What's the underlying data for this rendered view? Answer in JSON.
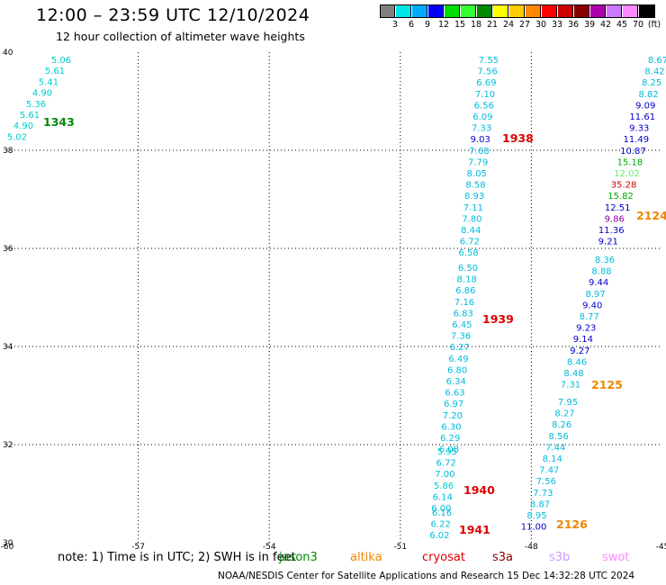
{
  "title": "12:00 – 23:59 UTC 12/10/2024",
  "subtitle": "12 hour collection of altimeter wave heights",
  "legend": {
    "unit": "(ft)",
    "bins": [
      {
        "label": "3",
        "color": "#808080"
      },
      {
        "label": "6",
        "color": "#00e5e5"
      },
      {
        "label": "9",
        "color": "#00aaff"
      },
      {
        "label": "12",
        "color": "#0000ff"
      },
      {
        "label": "15",
        "color": "#00dd00"
      },
      {
        "label": "18",
        "color": "#33ff33"
      },
      {
        "label": "21",
        "color": "#008800"
      },
      {
        "label": "24",
        "color": "#ffff00"
      },
      {
        "label": "27",
        "color": "#ffcc00"
      },
      {
        "label": "30",
        "color": "#ff8800"
      },
      {
        "label": "33",
        "color": "#ff0000"
      },
      {
        "label": "36",
        "color": "#cc0000"
      },
      {
        "label": "39",
        "color": "#880000"
      },
      {
        "label": "42",
        "color": "#aa00aa"
      },
      {
        "label": "45",
        "color": "#cc77ff"
      },
      {
        "label": "70",
        "color": "#ff88ff"
      },
      {
        "label": "",
        "color": "#000000"
      }
    ]
  },
  "axes": {
    "x_ticks": [
      "-60",
      "-57",
      "-54",
      "-51",
      "-48",
      "-45"
    ],
    "y_ticks": [
      "30",
      "32",
      "34",
      "36",
      "38",
      "40"
    ],
    "lon_range": [
      -60,
      -45
    ],
    "lat_range": [
      30,
      40
    ]
  },
  "tracks": [
    {
      "pass": "1343",
      "pass_color": "#008800",
      "points": [
        {
          "v": "5.06",
          "c": "#00cccc"
        },
        {
          "v": "5.61",
          "c": "#00cccc"
        },
        {
          "v": "5.41",
          "c": "#00cccc"
        },
        {
          "v": "4.90",
          "c": "#00cccc"
        },
        {
          "v": "5.36",
          "c": "#00cccc"
        },
        {
          "v": "5.61",
          "c": "#00cccc"
        },
        {
          "v": "4.90",
          "c": "#00cccc"
        },
        {
          "v": "5.02",
          "c": "#00cccc"
        }
      ]
    },
    {
      "pass": "1938",
      "pass_color": "#dd0000",
      "points": [
        {
          "v": "7.55",
          "c": "#00bbdd"
        },
        {
          "v": "7.56",
          "c": "#00bbdd"
        },
        {
          "v": "6.69",
          "c": "#00bbdd"
        },
        {
          "v": "7.10",
          "c": "#00bbdd"
        },
        {
          "v": "6.56",
          "c": "#00bbdd"
        },
        {
          "v": "6.09",
          "c": "#00bbdd"
        },
        {
          "v": "7.33",
          "c": "#00bbdd"
        },
        {
          "v": "9.03",
          "c": "#0000cc"
        },
        {
          "v": "7.68",
          "c": "#00bbdd"
        },
        {
          "v": "7.79",
          "c": "#00bbdd"
        },
        {
          "v": "8.05",
          "c": "#00bbdd"
        },
        {
          "v": "8.58",
          "c": "#00bbdd"
        },
        {
          "v": "8.93",
          "c": "#00bbdd"
        },
        {
          "v": "7.11",
          "c": "#00bbdd"
        },
        {
          "v": "7.80",
          "c": "#00bbdd"
        },
        {
          "v": "8.44",
          "c": "#00bbdd"
        },
        {
          "v": "6.72",
          "c": "#00bbdd"
        },
        {
          "v": "6.58",
          "c": "#00bbdd"
        }
      ]
    },
    {
      "pass": "1939",
      "pass_color": "#dd0000",
      "points": [
        {
          "v": "6.50",
          "c": "#00bbdd"
        },
        {
          "v": "8.18",
          "c": "#00bbdd"
        },
        {
          "v": "6.86",
          "c": "#00bbdd"
        },
        {
          "v": "7.16",
          "c": "#00bbdd"
        },
        {
          "v": "6.83",
          "c": "#00bbdd"
        },
        {
          "v": "6.45",
          "c": "#00bbdd"
        },
        {
          "v": "7.36",
          "c": "#00bbdd"
        },
        {
          "v": "6.27",
          "c": "#00bbdd"
        },
        {
          "v": "6.49",
          "c": "#00bbdd"
        },
        {
          "v": "6.80",
          "c": "#00bbdd"
        },
        {
          "v": "6.34",
          "c": "#00bbdd"
        },
        {
          "v": "6.63",
          "c": "#00bbdd"
        },
        {
          "v": "6.97",
          "c": "#00bbdd"
        },
        {
          "v": "7.20",
          "c": "#00bbdd"
        },
        {
          "v": "6.30",
          "c": "#00bbdd"
        },
        {
          "v": "6.29",
          "c": "#00bbdd"
        },
        {
          "v": "6.08",
          "c": "#00bbdd"
        }
      ]
    },
    {
      "pass": "1940",
      "pass_color": "#dd0000",
      "points": [
        {
          "v": "5.95",
          "c": "#00cccc"
        },
        {
          "v": "6.72",
          "c": "#00bbdd"
        },
        {
          "v": "7.00",
          "c": "#00bbdd"
        },
        {
          "v": "5.86",
          "c": "#00cccc"
        },
        {
          "v": "6.14",
          "c": "#00bbdd"
        },
        {
          "v": "6.00",
          "c": "#00bbdd"
        }
      ]
    },
    {
      "pass": "1941",
      "pass_color": "#dd0000",
      "points": [
        {
          "v": "6.16",
          "c": "#00bbdd"
        },
        {
          "v": "6.22",
          "c": "#00bbdd"
        },
        {
          "v": "6.02",
          "c": "#00bbdd"
        }
      ]
    },
    {
      "pass": "2124",
      "pass_color": "#ee8800",
      "points": [
        {
          "v": "8.67",
          "c": "#00bbdd"
        },
        {
          "v": "8.42",
          "c": "#00bbdd"
        },
        {
          "v": "8.25",
          "c": "#00bbdd"
        },
        {
          "v": "8.82",
          "c": "#00bbdd"
        },
        {
          "v": "9.09",
          "c": "#0000cc"
        },
        {
          "v": "11.61",
          "c": "#0000cc"
        },
        {
          "v": "9.33",
          "c": "#0000cc"
        },
        {
          "v": "11.49",
          "c": "#0000cc"
        },
        {
          "v": "10.87",
          "c": "#0000cc"
        },
        {
          "v": "15.18",
          "c": "#00aa00"
        },
        {
          "v": "12.02",
          "c": "#66ee66"
        },
        {
          "v": "35.28",
          "c": "#cc0000"
        },
        {
          "v": "15.82",
          "c": "#00aa00"
        },
        {
          "v": "12.51",
          "c": "#0000cc"
        },
        {
          "v": "9.86",
          "c": "#8800aa"
        },
        {
          "v": "11.36",
          "c": "#0000cc"
        },
        {
          "v": "9.21",
          "c": "#0000cc"
        }
      ]
    },
    {
      "pass": "2125",
      "pass_color": "#ee8800",
      "points": [
        {
          "v": "8.36",
          "c": "#00bbdd"
        },
        {
          "v": "8.88",
          "c": "#00bbdd"
        },
        {
          "v": "9.44",
          "c": "#0000cc"
        },
        {
          "v": "8.97",
          "c": "#00bbdd"
        },
        {
          "v": "9.40",
          "c": "#0000cc"
        },
        {
          "v": "8.77",
          "c": "#00bbdd"
        },
        {
          "v": "9.23",
          "c": "#0000cc"
        },
        {
          "v": "9.14",
          "c": "#0000cc"
        },
        {
          "v": "9.27",
          "c": "#0000cc"
        },
        {
          "v": "8.46",
          "c": "#00bbdd"
        },
        {
          "v": "8.48",
          "c": "#00bbdd"
        },
        {
          "v": "7.31",
          "c": "#00bbdd"
        }
      ]
    },
    {
      "pass": "2126",
      "pass_color": "#ee8800",
      "points": [
        {
          "v": "7.95",
          "c": "#00bbdd"
        },
        {
          "v": "8.27",
          "c": "#00bbdd"
        },
        {
          "v": "8.26",
          "c": "#00bbdd"
        },
        {
          "v": "8.56",
          "c": "#00bbdd"
        },
        {
          "v": "7.44",
          "c": "#00bbdd"
        },
        {
          "v": "8.14",
          "c": "#00bbdd"
        },
        {
          "v": "7.47",
          "c": "#00bbdd"
        },
        {
          "v": "7.56",
          "c": "#00bbdd"
        },
        {
          "v": "7.73",
          "c": "#00bbdd"
        },
        {
          "v": "8.87",
          "c": "#00bbdd"
        },
        {
          "v": "8.95",
          "c": "#00bbdd"
        },
        {
          "v": "11.00",
          "c": "#0000cc"
        }
      ]
    }
  ],
  "note": "note:  1) Time is in UTC; 2) SWH is in feet",
  "satellites": [
    {
      "name": "jason3",
      "color": "#008800"
    },
    {
      "name": "altika",
      "color": "#ee8800"
    },
    {
      "name": "cryosat",
      "color": "#dd0000"
    },
    {
      "name": "s3a",
      "color": "#880000"
    },
    {
      "name": "s3b",
      "color": "#cc99ff"
    },
    {
      "name": "swot",
      "color": "#ff88ff"
    }
  ],
  "credit": "NOAA/NESDIS Center for Satellite Applications and Research    15 Dec 14:32:28 UTC 2024"
}
